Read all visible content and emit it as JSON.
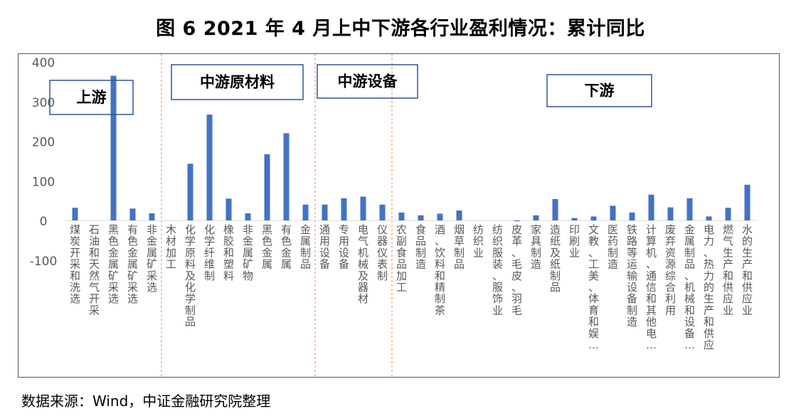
{
  "title": "图 6 2021 年 4 月上中下游各行业盈利情况：累计同比",
  "source": "数据来源：Wind，中证金融研究院整理",
  "colors": {
    "bar": "#4472C4",
    "divider": "#F4B183",
    "axis_text": "#595959"
  },
  "chart_data": {
    "type": "bar",
    "title": "",
    "xlabel": "",
    "ylabel": "",
    "ylim": [
      -100,
      400
    ],
    "yticks": [
      400,
      300,
      200,
      100,
      0,
      -100
    ],
    "grid": false,
    "legend": "none",
    "segments": [
      {
        "label": "上游",
        "start": 0,
        "end": 4
      },
      {
        "label": "中游原材料",
        "start": 5,
        "end": 12
      },
      {
        "label": "中游设备",
        "start": 13,
        "end": 16
      },
      {
        "label": "下游",
        "start": 17,
        "end": 35
      }
    ],
    "categories": [
      "煤炭开采和洗选",
      "石油和天然气开采",
      "黑色金属矿采选",
      "有色金属矿采选",
      "非金属矿采选",
      "木材加工",
      "化学原料及化学制品",
      "化学纤维制",
      "橡胶和塑料",
      "非金属矿物",
      "黑色金属",
      "有色金属",
      "金属制品",
      "通用设备",
      "专用设备",
      "电气机械及器材",
      "仪器仪表制",
      "农副食品加工",
      "食品制造",
      "酒、饮料和精制茶",
      "烟草制品",
      "纺织业",
      "纺织服装、服饰业",
      "皮革、毛皮、羽毛",
      "家具制造",
      "造纸及纸制品",
      "印刷业",
      "文教、工美、体育和娱…",
      "医药制造",
      "铁路等运输设备制造",
      "计算机、通信和其他电…",
      "废弃资源综合利用",
      "金属制品、机械和设备…",
      "电力、热力的生产和供应",
      "燃气生产和供应业",
      "水的生产和供应业"
    ],
    "values": [
      32,
      0,
      365,
      30,
      18,
      0,
      143,
      267,
      55,
      18,
      167,
      220,
      40,
      40,
      56,
      60,
      40,
      20,
      13,
      17,
      25,
      0,
      0,
      -2,
      13,
      54,
      6,
      10,
      37,
      20,
      65,
      33,
      56,
      10,
      32,
      90
    ]
  }
}
